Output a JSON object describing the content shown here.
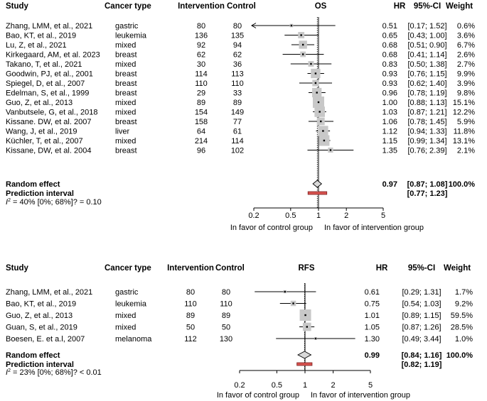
{
  "chart_data": [
    {
      "type": "forest",
      "title": "OS",
      "columns": {
        "study": "Study",
        "cancer_type": "Cancer type",
        "intervention": "Intervention",
        "control": "Control",
        "hr": "HR",
        "ci": "95%-CI",
        "weight": "Weight"
      },
      "rows": [
        {
          "study": "Zhang, LMM, et al., 2021",
          "cancer": "gastric",
          "intervention": "80",
          "control": "80",
          "hr": 0.51,
          "lo": 0.17,
          "hi": 1.52,
          "hr_text": "0.51",
          "ci_text": "[0.17; 1.52]",
          "weight_text": "0.6%",
          "weight": 0.6
        },
        {
          "study": "Bao, KT, et al., 2019",
          "cancer": "leukemia",
          "intervention": "136",
          "control": "135",
          "hr": 0.65,
          "lo": 0.43,
          "hi": 1.0,
          "hr_text": "0.65",
          "ci_text": "[0.43; 1.00]",
          "weight_text": "3.6%",
          "weight": 3.6
        },
        {
          "study": "Lu, Z, et al., 2021",
          "cancer": "mixed",
          "intervention": "92",
          "control": "94",
          "hr": 0.68,
          "lo": 0.51,
          "hi": 0.9,
          "hr_text": "0.68",
          "ci_text": "[0.51; 0.90]",
          "weight_text": "6.7%",
          "weight": 6.7
        },
        {
          "study": "Kirkegaard, AM, et al. 2023",
          "cancer": "breast",
          "intervention": "62",
          "control": "62",
          "hr": 0.68,
          "lo": 0.41,
          "hi": 1.14,
          "hr_text": "0.68",
          "ci_text": "[0.41; 1.14]",
          "weight_text": "2.6%",
          "weight": 2.6
        },
        {
          "study": "Takano, T, et al., 2021",
          "cancer": "mixed",
          "intervention": "30",
          "control": "36",
          "hr": 0.83,
          "lo": 0.5,
          "hi": 1.38,
          "hr_text": "0.83",
          "ci_text": "[0.50; 1.38]",
          "weight_text": "2.7%",
          "weight": 2.7
        },
        {
          "study": "Goodwin, PJ, et al., 2001",
          "cancer": "breast",
          "intervention": "114",
          "control": "113",
          "hr": 0.93,
          "lo": 0.76,
          "hi": 1.15,
          "hr_text": "0.93",
          "ci_text": "[0.76; 1.15]",
          "weight_text": "9.9%",
          "weight": 9.9
        },
        {
          "study": "Spiegel, D, et al., 2007",
          "cancer": "breast",
          "intervention": "110",
          "control": "110",
          "hr": 0.93,
          "lo": 0.62,
          "hi": 1.4,
          "hr_text": "0.93",
          "ci_text": "[0.62; 1.40]",
          "weight_text": "3.9%",
          "weight": 3.9
        },
        {
          "study": "Edelman, S, et al., 1999",
          "cancer": "breast",
          "intervention": "29",
          "control": "33",
          "hr": 0.96,
          "lo": 0.78,
          "hi": 1.19,
          "hr_text": "0.96",
          "ci_text": "[0.78; 1.19]",
          "weight_text": "9.8%",
          "weight": 9.8
        },
        {
          "study": "Guo, Z, et al., 2013",
          "cancer": "mixed",
          "intervention": "89",
          "control": "89",
          "hr": 1.0,
          "lo": 0.88,
          "hi": 1.13,
          "hr_text": "1.00",
          "ci_text": "[0.88; 1.13]",
          "weight_text": "15.1%",
          "weight": 15.1
        },
        {
          "study": "Vanbutsele, G, et al., 2018",
          "cancer": "mixed",
          "intervention": "154",
          "control": "149",
          "hr": 1.03,
          "lo": 0.87,
          "hi": 1.21,
          "hr_text": "1.03",
          "ci_text": "[0.87; 1.21]",
          "weight_text": "12.2%",
          "weight": 12.2
        },
        {
          "study": "Kissane. DW, et al. 2007",
          "cancer": "breast",
          "intervention": "158",
          "control": "77",
          "hr": 1.06,
          "lo": 0.78,
          "hi": 1.45,
          "hr_text": "1.06",
          "ci_text": "[0.78; 1.45]",
          "weight_text": "5.9%",
          "weight": 5.9
        },
        {
          "study": "Wang, J, et al., 2019",
          "cancer": "liver",
          "intervention": "64",
          "control": "61",
          "hr": 1.12,
          "lo": 0.94,
          "hi": 1.33,
          "hr_text": "1.12",
          "ci_text": "[0.94; 1.33]",
          "weight_text": "11.8%",
          "weight": 11.8
        },
        {
          "study": "Küchler, T, et al., 2007",
          "cancer": "mixed",
          "intervention": "214",
          "control": "114",
          "hr": 1.15,
          "lo": 0.99,
          "hi": 1.34,
          "hr_text": "1.15",
          "ci_text": "[0.99; 1.34]",
          "weight_text": "13.1%",
          "weight": 13.1
        },
        {
          "study": "Kissane, DW, et al. 2004",
          "cancer": "breast",
          "intervention": "96",
          "control": "102",
          "hr": 1.35,
          "lo": 0.76,
          "hi": 2.39,
          "hr_text": "1.35",
          "ci_text": "[0.76; 2.39]",
          "weight_text": "2.1%",
          "weight": 2.1
        }
      ],
      "random_effect": {
        "label": "Random effect",
        "hr": 0.97,
        "lo": 0.87,
        "hi": 1.08,
        "hr_text": "0.97",
        "ci_text": "[0.87; 1.08]",
        "weight_text": "100.0%"
      },
      "prediction_interval": {
        "label": "Prediction interval",
        "lo": 0.77,
        "hi": 1.23,
        "ci_text": "[0.77; 1.23]"
      },
      "heterogeneity": {
        "i2_symbol": "I",
        "i2_sup": "2",
        "text": " = 40% [0%; 68%]? = 0.10"
      },
      "x_scale": "log",
      "xlim": [
        0.2,
        5
      ],
      "x_ticks": [
        0.2,
        0.5,
        1,
        2,
        5
      ],
      "x_tick_labels": [
        "0.2",
        "0.5",
        "1",
        "2",
        "5"
      ],
      "x_label_left": "In favor of control group",
      "x_label_right": "In favor of intervention group",
      "null_line": 1
    },
    {
      "type": "forest",
      "title": "RFS",
      "columns": {
        "study": "Study",
        "cancer_type": "Cancer type",
        "intervention": "Intervention",
        "control": "Control",
        "hr": "HR",
        "ci": "95%-CI",
        "weight": "Weight"
      },
      "rows": [
        {
          "study": "Zhang, LMM, et al., 2021",
          "cancer": "gastric",
          "intervention": "80",
          "control": "80",
          "hr": 0.61,
          "lo": 0.29,
          "hi": 1.31,
          "hr_text": "0.61",
          "ci_text": "[0.29; 1.31]",
          "weight_text": "1.7%",
          "weight": 1.7
        },
        {
          "study": "Bao, KT, et al., 2019",
          "cancer": "leukemia",
          "intervention": "110",
          "control": "110",
          "hr": 0.75,
          "lo": 0.54,
          "hi": 1.03,
          "hr_text": "0.75",
          "ci_text": "[0.54; 1.03]",
          "weight_text": "9.2%",
          "weight": 9.2
        },
        {
          "study": "Guo, Z, et al., 2013",
          "cancer": "mixed",
          "intervention": "89",
          "control": "89",
          "hr": 1.01,
          "lo": 0.89,
          "hi": 1.15,
          "hr_text": "1.01",
          "ci_text": "[0.89; 1.15]",
          "weight_text": "59.5%",
          "weight": 59.5
        },
        {
          "study": "Guan, S, et al., 2019",
          "cancer": "mixed",
          "intervention": "50",
          "control": "50",
          "hr": 1.05,
          "lo": 0.87,
          "hi": 1.26,
          "hr_text": "1.05",
          "ci_text": "[0.87; 1.26]",
          "weight_text": "28.5%",
          "weight": 28.5
        },
        {
          "study": "Boesen, E. et a.l, 2007",
          "cancer": "melanoma",
          "intervention": "112",
          "control": "130",
          "hr": 1.3,
          "lo": 0.49,
          "hi": 3.44,
          "hr_text": "1.30",
          "ci_text": "[0.49; 3.44]",
          "weight_text": "1.0%",
          "weight": 1.0
        }
      ],
      "random_effect": {
        "label": "Random effect",
        "hr": 0.99,
        "lo": 0.84,
        "hi": 1.16,
        "hr_text": "0.99",
        "ci_text": "[0.84; 1.16]",
        "weight_text": "100.0%"
      },
      "prediction_interval": {
        "label": "Prediction interval",
        "lo": 0.82,
        "hi": 1.19,
        "ci_text": "[0.82; 1.19]"
      },
      "heterogeneity": {
        "i2_symbol": "I",
        "i2_sup": "2",
        "text": " = 23% [0%; 68%]? < 0.01"
      },
      "x_scale": "log",
      "xlim": [
        0.2,
        5
      ],
      "x_ticks": [
        0.2,
        0.5,
        1,
        2,
        5
      ],
      "x_tick_labels": [
        "0.2",
        "0.5",
        "1",
        "2",
        "5"
      ],
      "x_label_left": "In favor of control group",
      "x_label_right": "In favor of intervention group",
      "null_line": 1
    }
  ]
}
